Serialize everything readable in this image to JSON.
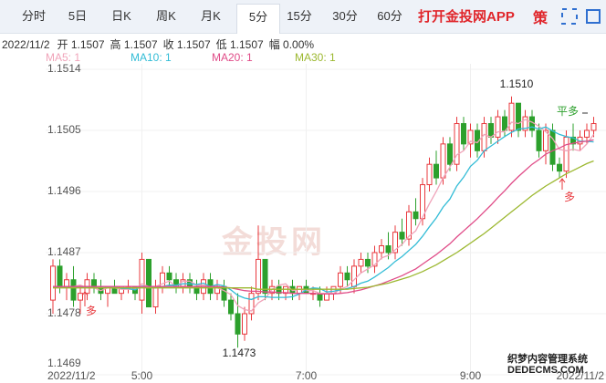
{
  "tabs": [
    {
      "label": "分时",
      "selected": false
    },
    {
      "label": "5日",
      "selected": false
    },
    {
      "label": "日K",
      "selected": false
    },
    {
      "label": "周K",
      "selected": false
    },
    {
      "label": "月K",
      "selected": false
    },
    {
      "label": "5分",
      "selected": true
    },
    {
      "label": "15分",
      "selected": false
    },
    {
      "label": "30分",
      "selected": false
    },
    {
      "label": "60分",
      "selected": false
    }
  ],
  "app_button": "打开金投网APP",
  "strategy_button": "策",
  "info": [
    "2022/11/2",
    "开 1.1507",
    "高 1.1507",
    "收 1.1507",
    "低 1.1507",
    "幅 0.00%"
  ],
  "watermark": "金投网",
  "site_mark": [
    "织梦内容管理系统",
    "DEDECMS.COM"
  ],
  "chart_data": {
    "type": "candlestick",
    "categories": [
      "2022/11/2",
      null,
      null,
      null,
      null,
      null,
      null,
      null,
      null,
      null,
      null,
      null,
      null,
      "5:00",
      null,
      null,
      null,
      null,
      null,
      null,
      null,
      null,
      null,
      null,
      null,
      null,
      null,
      null,
      null,
      null,
      null,
      null,
      null,
      null,
      null,
      null,
      null,
      "7:00",
      null,
      null,
      null,
      null,
      null,
      null,
      null,
      null,
      null,
      null,
      null,
      null,
      null,
      null,
      null,
      null,
      null,
      null,
      null,
      null,
      null,
      null,
      null,
      "9:00",
      null,
      null,
      null,
      null,
      null,
      null,
      null,
      null,
      null,
      null,
      null,
      null,
      null,
      null,
      null,
      null,
      null,
      "2022/11/2"
    ],
    "candles": [
      [
        1.148,
        1.1486,
        1.1478,
        1.1485
      ],
      [
        1.1485,
        1.1486,
        1.1481,
        1.1482
      ],
      [
        1.1482,
        1.1484,
        1.148,
        1.1483
      ],
      [
        1.1483,
        1.1485,
        1.1479,
        1.148
      ],
      [
        1.148,
        1.1482,
        1.1478,
        1.1481
      ],
      [
        1.1481,
        1.1484,
        1.148,
        1.1483
      ],
      [
        1.1483,
        1.1484,
        1.1481,
        1.1482
      ],
      [
        1.1482,
        1.1483,
        1.148,
        1.1481
      ],
      [
        1.1481,
        1.1482,
        1.1479,
        1.1482
      ],
      [
        1.1482,
        1.1483,
        1.1481,
        1.1481
      ],
      [
        1.1481,
        1.1482,
        1.148,
        1.1482
      ],
      [
        1.1482,
        1.1483,
        1.1481,
        1.1482
      ],
      [
        1.1482,
        1.1482,
        1.148,
        1.1481
      ],
      [
        1.148,
        1.1487,
        1.1478,
        1.1486
      ],
      [
        1.1486,
        1.1486,
        1.1479,
        1.1479
      ],
      [
        1.1479,
        1.1483,
        1.1478,
        1.1482
      ],
      [
        1.1482,
        1.1485,
        1.1481,
        1.1484
      ],
      [
        1.1484,
        1.1485,
        1.1482,
        1.1483
      ],
      [
        1.1483,
        1.1484,
        1.1481,
        1.1482
      ],
      [
        1.1482,
        1.1484,
        1.1481,
        1.1483
      ],
      [
        1.1483,
        1.1484,
        1.1481,
        1.1482
      ],
      [
        1.1482,
        1.1483,
        1.148,
        1.1481
      ],
      [
        1.1481,
        1.1484,
        1.148,
        1.1483
      ],
      [
        1.1483,
        1.1484,
        1.148,
        1.1481
      ],
      [
        1.1481,
        1.1483,
        1.148,
        1.1482
      ],
      [
        1.1482,
        1.1483,
        1.1479,
        1.148
      ],
      [
        1.148,
        1.1481,
        1.1477,
        1.1478
      ],
      [
        1.1478,
        1.1481,
        1.1473,
        1.1475
      ],
      [
        1.1475,
        1.1479,
        1.1474,
        1.1478
      ],
      [
        1.1478,
        1.1482,
        1.1477,
        1.1481
      ],
      [
        1.1481,
        1.1491,
        1.148,
        1.1486
      ],
      [
        1.1486,
        1.1486,
        1.148,
        1.1481
      ],
      [
        1.1481,
        1.1483,
        1.148,
        1.1482
      ],
      [
        1.1482,
        1.1483,
        1.148,
        1.1481
      ],
      [
        1.1481,
        1.1482,
        1.148,
        1.1482
      ],
      [
        1.1482,
        1.1483,
        1.148,
        1.1481
      ],
      [
        1.1481,
        1.1482,
        1.148,
        1.1482
      ],
      [
        1.1482,
        1.1483,
        1.1481,
        1.1481
      ],
      [
        1.1481,
        1.1482,
        1.148,
        1.1481
      ],
      [
        1.1481,
        1.1482,
        1.1479,
        1.148
      ],
      [
        1.148,
        1.1482,
        1.148,
        1.1481
      ],
      [
        1.1481,
        1.1482,
        1.148,
        1.1482
      ],
      [
        1.1482,
        1.1485,
        1.1481,
        1.1484
      ],
      [
        1.1484,
        1.1485,
        1.1482,
        1.1483
      ],
      [
        1.1482,
        1.1486,
        1.1481,
        1.1485
      ],
      [
        1.1485,
        1.1487,
        1.1484,
        1.1486
      ],
      [
        1.1486,
        1.1487,
        1.1484,
        1.1485
      ],
      [
        1.1485,
        1.1488,
        1.1484,
        1.1487
      ],
      [
        1.1487,
        1.1489,
        1.1486,
        1.1488
      ],
      [
        1.1488,
        1.149,
        1.1486,
        1.1487
      ],
      [
        1.1487,
        1.1491,
        1.1486,
        1.149
      ],
      [
        1.149,
        1.1492,
        1.1488,
        1.1489
      ],
      [
        1.1489,
        1.1494,
        1.1488,
        1.1493
      ],
      [
        1.1493,
        1.1495,
        1.1491,
        1.1492
      ],
      [
        1.1492,
        1.1498,
        1.1491,
        1.1497
      ],
      [
        1.1497,
        1.1501,
        1.1496,
        1.15
      ],
      [
        1.15,
        1.1502,
        1.1497,
        1.1498
      ],
      [
        1.1498,
        1.1504,
        1.1497,
        1.1503
      ],
      [
        1.1503,
        1.1504,
        1.1499,
        1.15
      ],
      [
        1.15,
        1.1507,
        1.1499,
        1.1506
      ],
      [
        1.1506,
        1.1507,
        1.1502,
        1.1503
      ],
      [
        1.1503,
        1.1506,
        1.1501,
        1.1505
      ],
      [
        1.1505,
        1.1506,
        1.1501,
        1.1502
      ],
      [
        1.1502,
        1.1507,
        1.1501,
        1.1506
      ],
      [
        1.1506,
        1.1507,
        1.1503,
        1.1504
      ],
      [
        1.1504,
        1.1508,
        1.1503,
        1.1507
      ],
      [
        1.1507,
        1.1508,
        1.1504,
        1.1505
      ],
      [
        1.1505,
        1.151,
        1.1504,
        1.1509
      ],
      [
        1.1509,
        1.1509,
        1.1504,
        1.1505
      ],
      [
        1.1505,
        1.1508,
        1.1504,
        1.1507
      ],
      [
        1.1507,
        1.1508,
        1.1504,
        1.1505
      ],
      [
        1.1505,
        1.1506,
        1.1501,
        1.1502
      ],
      [
        1.1502,
        1.1506,
        1.15,
        1.1505
      ],
      [
        1.1505,
        1.1506,
        1.1499,
        1.15
      ],
      [
        1.15,
        1.1501,
        1.1498,
        1.1499
      ],
      [
        1.1499,
        1.1505,
        1.1498,
        1.1504
      ],
      [
        1.1504,
        1.1506,
        1.1502,
        1.1503
      ],
      [
        1.1503,
        1.1505,
        1.1502,
        1.1504
      ],
      [
        1.1504,
        1.1506,
        1.1503,
        1.1505
      ],
      [
        1.1505,
        1.1507,
        1.1504,
        1.1506
      ]
    ],
    "up_color": "#e8383d",
    "down_color": "#2ca02c",
    "series": [
      {
        "name": "MA5: 1",
        "color": "#f0a3b9",
        "values": [
          1.1482,
          1.1482,
          1.1482,
          1.1482,
          1.14822,
          1.14818,
          1.14818,
          1.14814,
          1.14818,
          1.14818,
          1.14816,
          1.14816,
          1.14816,
          1.14824,
          1.1482,
          1.1482,
          1.14824,
          1.14828,
          1.1482,
          1.14828,
          1.14828,
          1.14822,
          1.14822,
          1.1482,
          1.14818,
          1.14814,
          1.14808,
          1.14792,
          1.14786,
          1.14784,
          1.14796,
          1.14802,
          1.14816,
          1.14822,
          1.14824,
          1.14814,
          1.14816,
          1.14814,
          1.14814,
          1.1481,
          1.1481,
          1.1481,
          1.14816,
          1.1482,
          1.1483,
          1.1484,
          1.14846,
          1.14852,
          1.14862,
          1.14866,
          1.14874,
          1.14882,
          1.14894,
          1.14902,
          1.14922,
          1.14942,
          1.1496,
          1.1498,
          1.14996,
          1.15014,
          1.1502,
          1.15034,
          1.15032,
          1.15044,
          1.1504,
          1.15048,
          1.15048,
          1.15062,
          1.1506,
          1.15066,
          1.15062,
          1.15056,
          1.15048,
          1.15038,
          1.15022,
          1.1502,
          1.15022,
          1.1502,
          1.1503,
          1.15044
        ]
      },
      {
        "name": "MA10: 1",
        "color": "#32bcd6",
        "values": [
          1.1482,
          1.1482,
          1.1482,
          1.1482,
          1.1482,
          1.1482,
          1.1482,
          1.1482,
          1.1482,
          1.1482,
          1.14817,
          1.14817,
          1.14815,
          1.14821,
          1.14819,
          1.14818,
          1.1482,
          1.14822,
          1.14822,
          1.14824,
          1.14824,
          1.14823,
          1.14825,
          1.1482,
          1.14823,
          1.14821,
          1.14815,
          1.14807,
          1.14803,
          1.14801,
          1.14805,
          1.14805,
          1.14804,
          1.14804,
          1.14804,
          1.14805,
          1.14809,
          1.14815,
          1.14818,
          1.14817,
          1.14812,
          1.14813,
          1.14815,
          1.14817,
          1.1482,
          1.14825,
          1.14828,
          1.14834,
          1.14841,
          1.14848,
          1.14857,
          1.14864,
          1.14873,
          1.14882,
          1.14894,
          1.14908,
          1.14921,
          1.14937,
          1.14949,
          1.14968,
          1.14981,
          1.14997,
          1.15006,
          1.1502,
          1.15027,
          1.15034,
          1.15041,
          1.15047,
          1.15052,
          1.15053,
          1.15055,
          1.15052,
          1.15055,
          1.15049,
          1.15044,
          1.15041,
          1.15039,
          1.15034,
          1.15034,
          1.15033
        ]
      },
      {
        "name": "MA20: 1",
        "color": "#e04c88",
        "values": [
          1.1482,
          1.1482,
          1.1482,
          1.1482,
          1.1482,
          1.1482,
          1.1482,
          1.1482,
          1.1482,
          1.1482,
          1.1482,
          1.1482,
          1.1482,
          1.1482,
          1.1482,
          1.1482,
          1.1482,
          1.1482,
          1.1482,
          1.1482,
          1.1482,
          1.1482,
          1.1482,
          1.1482,
          1.1482,
          1.14819,
          1.14818,
          1.14816,
          1.14814,
          1.14813,
          1.14813,
          1.14812,
          1.14812,
          1.14811,
          1.14811,
          1.1481,
          1.1481,
          1.1481,
          1.1481,
          1.14809,
          1.14809,
          1.14809,
          1.1481,
          1.14811,
          1.14813,
          1.14815,
          1.14818,
          1.14821,
          1.14824,
          1.14828,
          1.14832,
          1.14836,
          1.14841,
          1.14846,
          1.14853,
          1.1486,
          1.14867,
          1.14875,
          1.14883,
          1.14893,
          1.14902,
          1.14911,
          1.1492,
          1.1493,
          1.1494,
          1.14951,
          1.14961,
          1.14972,
          1.14982,
          1.14991,
          1.15,
          1.15007,
          1.15015,
          1.1502,
          1.15024,
          1.15029,
          1.15031,
          1.15033,
          1.15034,
          1.15036
        ]
      },
      {
        "name": "MA30: 1",
        "color": "#9cb830",
        "values": [
          1.14818,
          1.14818,
          1.14818,
          1.14818,
          1.14818,
          1.14818,
          1.14818,
          1.14818,
          1.14818,
          1.14818,
          1.14818,
          1.14818,
          1.14818,
          1.14818,
          1.14818,
          1.14818,
          1.14818,
          1.14818,
          1.14818,
          1.14818,
          1.14818,
          1.14818,
          1.14818,
          1.14818,
          1.14818,
          1.14818,
          1.14818,
          1.14818,
          1.14818,
          1.14818,
          1.14816,
          1.14816,
          1.14816,
          1.14816,
          1.14816,
          1.14816,
          1.14816,
          1.14816,
          1.14816,
          1.14816,
          1.14816,
          1.14816,
          1.14816,
          1.14816,
          1.14817,
          1.14818,
          1.14819,
          1.14821,
          1.14823,
          1.14825,
          1.14828,
          1.14831,
          1.14834,
          1.14838,
          1.14842,
          1.14847,
          1.14852,
          1.14858,
          1.14864,
          1.1487,
          1.14877,
          1.14884,
          1.14891,
          1.14898,
          1.14906,
          1.14914,
          1.14922,
          1.1493,
          1.14938,
          1.14946,
          1.14954,
          1.14961,
          1.14968,
          1.14974,
          1.1498,
          1.14986,
          1.14991,
          1.14996,
          1.15001,
          1.15005
        ]
      }
    ],
    "ylim": [
      1.1469,
      1.15148
    ],
    "yticks": [
      1.1514,
      1.1505,
      1.1496,
      1.1487,
      1.1478,
      1.1469
    ],
    "grid": true,
    "annotations": [
      {
        "text": "1.1510",
        "color": "#222"
      },
      {
        "text": "1.1473",
        "color": "#222"
      },
      {
        "text": "平多",
        "color": "#2ca02c"
      },
      {
        "text": "多",
        "color": "#e8383d"
      },
      {
        "text": "多",
        "color": "#e8383d"
      }
    ]
  }
}
